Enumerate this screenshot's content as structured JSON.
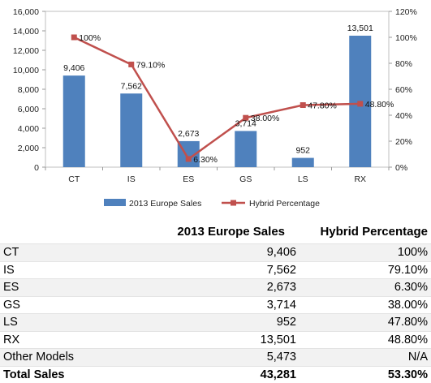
{
  "chart_data": {
    "type": "bar-line combo",
    "categories": [
      "CT",
      "IS",
      "ES",
      "GS",
      "LS",
      "RX"
    ],
    "series": [
      {
        "name": "2013 Europe Sales",
        "type": "bar",
        "axis": "left",
        "color": "#4f81bd",
        "values": [
          9406,
          7562,
          2673,
          3714,
          952,
          13501
        ],
        "labels": [
          "9,406",
          "7,562",
          "2,673",
          "3,714",
          "952",
          "13,501"
        ]
      },
      {
        "name": "Hybrid Percentage",
        "type": "line",
        "axis": "right",
        "color": "#c0504d",
        "values": [
          100,
          79.1,
          6.3,
          38.0,
          47.8,
          48.8
        ],
        "labels": [
          "100%",
          "79.10%",
          "6.30%",
          "38.00%",
          "47.80%",
          "48.80%"
        ]
      }
    ],
    "y_left": {
      "min": 0,
      "max": 16000,
      "step": 2000,
      "ticks": [
        "0",
        "2,000",
        "4,000",
        "6,000",
        "8,000",
        "10,000",
        "12,000",
        "14,000",
        "16,000"
      ]
    },
    "y_right": {
      "min": 0,
      "max": 120,
      "step": 20,
      "ticks": [
        "0%",
        "20%",
        "40%",
        "60%",
        "80%",
        "100%",
        "120%"
      ]
    },
    "grid": false,
    "legend": "bottom"
  },
  "table": {
    "headers": [
      "",
      "2013 Europe Sales",
      "Hybrid Percentage"
    ],
    "rows": [
      {
        "name": "CT",
        "sales": "9,406",
        "hybrid": "100%"
      },
      {
        "name": "IS",
        "sales": "7,562",
        "hybrid": "79.10%"
      },
      {
        "name": "ES",
        "sales": "2,673",
        "hybrid": "6.30%"
      },
      {
        "name": "GS",
        "sales": "3,714",
        "hybrid": "38.00%"
      },
      {
        "name": "LS",
        "sales": "952",
        "hybrid": "47.80%"
      },
      {
        "name": "RX",
        "sales": "13,501",
        "hybrid": "48.80%"
      },
      {
        "name": "Other Models",
        "sales": "5,473",
        "hybrid": "N/A"
      }
    ],
    "total": {
      "name": "Total Sales",
      "sales": "43,281",
      "hybrid": "53.30%"
    }
  }
}
